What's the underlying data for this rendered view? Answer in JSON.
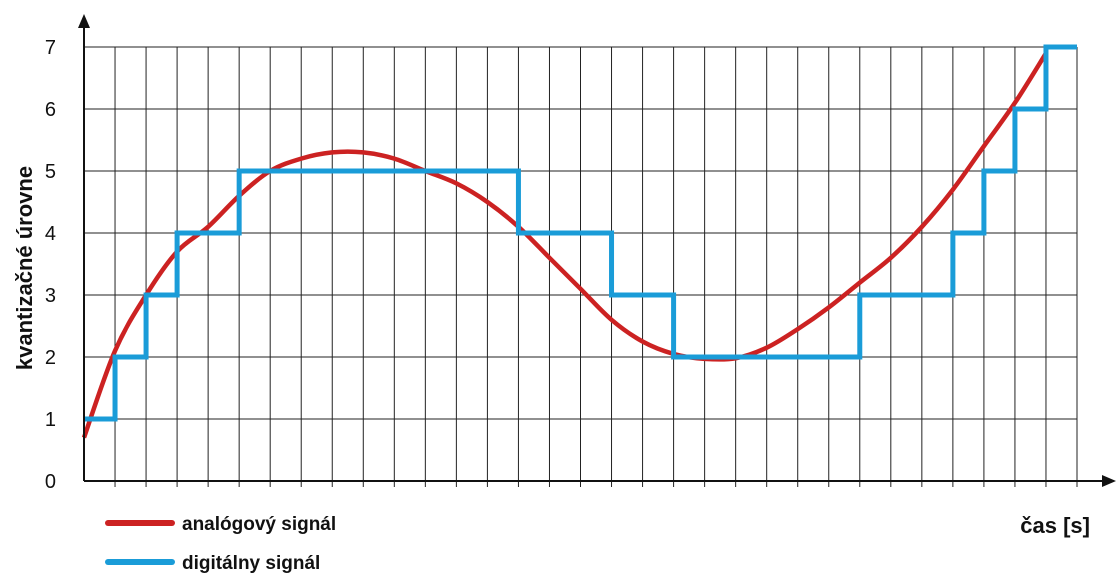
{
  "chart_data": {
    "type": "line",
    "title": "",
    "xlabel": "čas [s]",
    "ylabel": "kvantizačné úrovne",
    "ylim": [
      0,
      7
    ],
    "xlim": [
      0,
      32
    ],
    "yticks": [
      "0",
      "1",
      "2",
      "3",
      "4",
      "5",
      "6",
      "7"
    ],
    "grid": true,
    "legend_position": "bottom-left",
    "series": [
      {
        "name": "analógový signál",
        "color": "#cc2222",
        "style": "smooth",
        "x": [
          0,
          1,
          2,
          3,
          4,
          5,
          6,
          7,
          8,
          9,
          10,
          11,
          12,
          13,
          14,
          15,
          16,
          17,
          18,
          19,
          20,
          21,
          22,
          23,
          24,
          25,
          26,
          27,
          28,
          29,
          30,
          31
        ],
        "y": [
          0.7,
          2.1,
          3.0,
          3.7,
          4.1,
          4.6,
          5.0,
          5.2,
          5.3,
          5.3,
          5.2,
          5.0,
          4.8,
          4.5,
          4.1,
          3.6,
          3.1,
          2.6,
          2.25,
          2.05,
          1.97,
          1.98,
          2.15,
          2.45,
          2.8,
          3.2,
          3.6,
          4.1,
          4.7,
          5.4,
          6.1,
          6.9
        ]
      },
      {
        "name": "digitálny signál",
        "color": "#1a9cd8",
        "style": "step",
        "x": [
          0,
          1,
          2,
          3,
          5,
          14,
          17,
          19,
          25,
          28,
          29,
          30,
          31,
          32
        ],
        "y": [
          1,
          2,
          3,
          4,
          5,
          4,
          3,
          2,
          3,
          4,
          5,
          6,
          7,
          7
        ]
      }
    ]
  }
}
